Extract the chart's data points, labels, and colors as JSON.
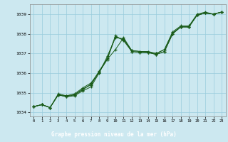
{
  "title": "Graphe pression niveau de la mer (hPa)",
  "bg_color": "#cce8f0",
  "grid_color": "#99ccdd",
  "line_color": "#1a5c1a",
  "label_bg_color": "#1a5c1a",
  "label_text_color": "#ffffff",
  "xlim": [
    -0.5,
    23.5
  ],
  "ylim": [
    1033.8,
    1039.5
  ],
  "yticks": [
    1034,
    1035,
    1036,
    1037,
    1038,
    1039
  ],
  "xticks": [
    0,
    1,
    2,
    3,
    4,
    5,
    6,
    7,
    8,
    9,
    10,
    11,
    12,
    13,
    14,
    15,
    16,
    17,
    18,
    19,
    20,
    21,
    22,
    23
  ],
  "series": [
    [
      1034.3,
      1034.4,
      1034.25,
      1034.9,
      1034.8,
      1034.85,
      1035.1,
      1035.3,
      1036.0,
      1036.85,
      1037.8,
      1037.75,
      1037.1,
      1037.05,
      1037.05,
      1037.0,
      1037.2,
      1038.1,
      1038.4,
      1038.4,
      1039.0,
      1039.1,
      1039.0,
      1039.1
    ],
    [
      1034.3,
      1034.4,
      1034.25,
      1034.9,
      1034.8,
      1034.9,
      1035.2,
      1035.4,
      1036.05,
      1036.7,
      1037.85,
      1037.7,
      1037.15,
      1037.1,
      1037.1,
      1037.0,
      1037.2,
      1038.05,
      1038.35,
      1038.35,
      1038.95,
      1039.05,
      1039.0,
      1039.1
    ],
    [
      1034.3,
      1034.4,
      1034.25,
      1034.9,
      1034.85,
      1034.9,
      1035.15,
      1035.45,
      1036.1,
      1036.75,
      1037.9,
      1037.65,
      1037.1,
      1037.05,
      1037.05,
      1036.95,
      1037.1,
      1038.0,
      1038.35,
      1038.35,
      1038.95,
      1039.05,
      1039.0,
      1039.1
    ],
    [
      1034.3,
      1034.4,
      1034.25,
      1034.95,
      1034.85,
      1034.95,
      1035.25,
      1035.5,
      1036.05,
      1036.7,
      1037.2,
      1037.8,
      1037.15,
      1037.1,
      1037.05,
      1036.95,
      1037.1,
      1038.0,
      1038.35,
      1038.35,
      1038.95,
      1039.05,
      1039.0,
      1039.1
    ]
  ]
}
